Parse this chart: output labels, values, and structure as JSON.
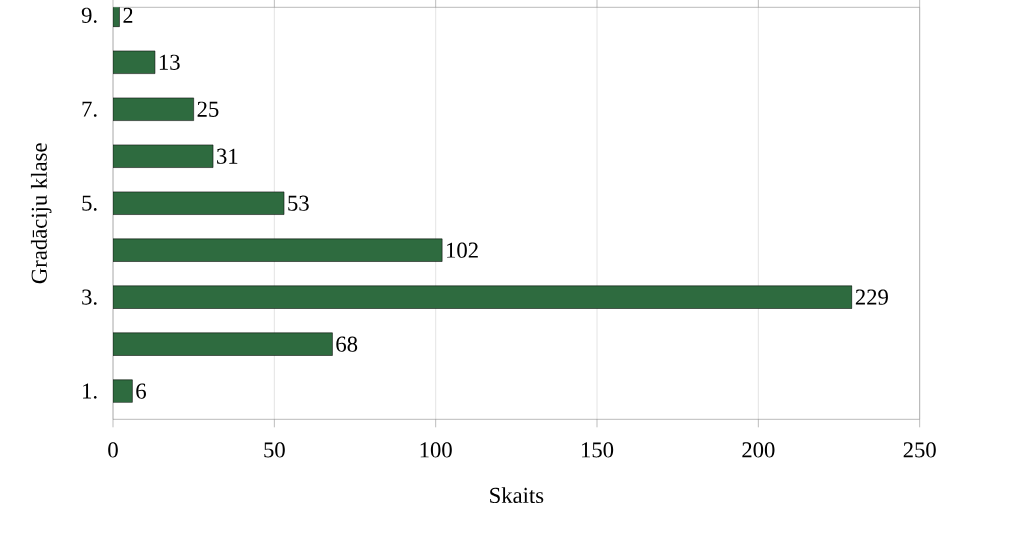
{
  "chart_data": {
    "type": "bar",
    "orientation": "horizontal",
    "xlabel": "Skaits",
    "ylabel": "Gradāciju klase",
    "categories": [
      "9.",
      null,
      "7.",
      null,
      "5.",
      null,
      "3.",
      null,
      "1."
    ],
    "values": [
      2,
      13,
      25,
      31,
      53,
      102,
      229,
      68,
      6
    ],
    "color": "#2e6b3f",
    "xlim": [
      0,
      250
    ],
    "xticks": [
      0,
      50,
      100,
      150,
      200,
      250
    ],
    "grid": "x",
    "data_labels": true
  }
}
